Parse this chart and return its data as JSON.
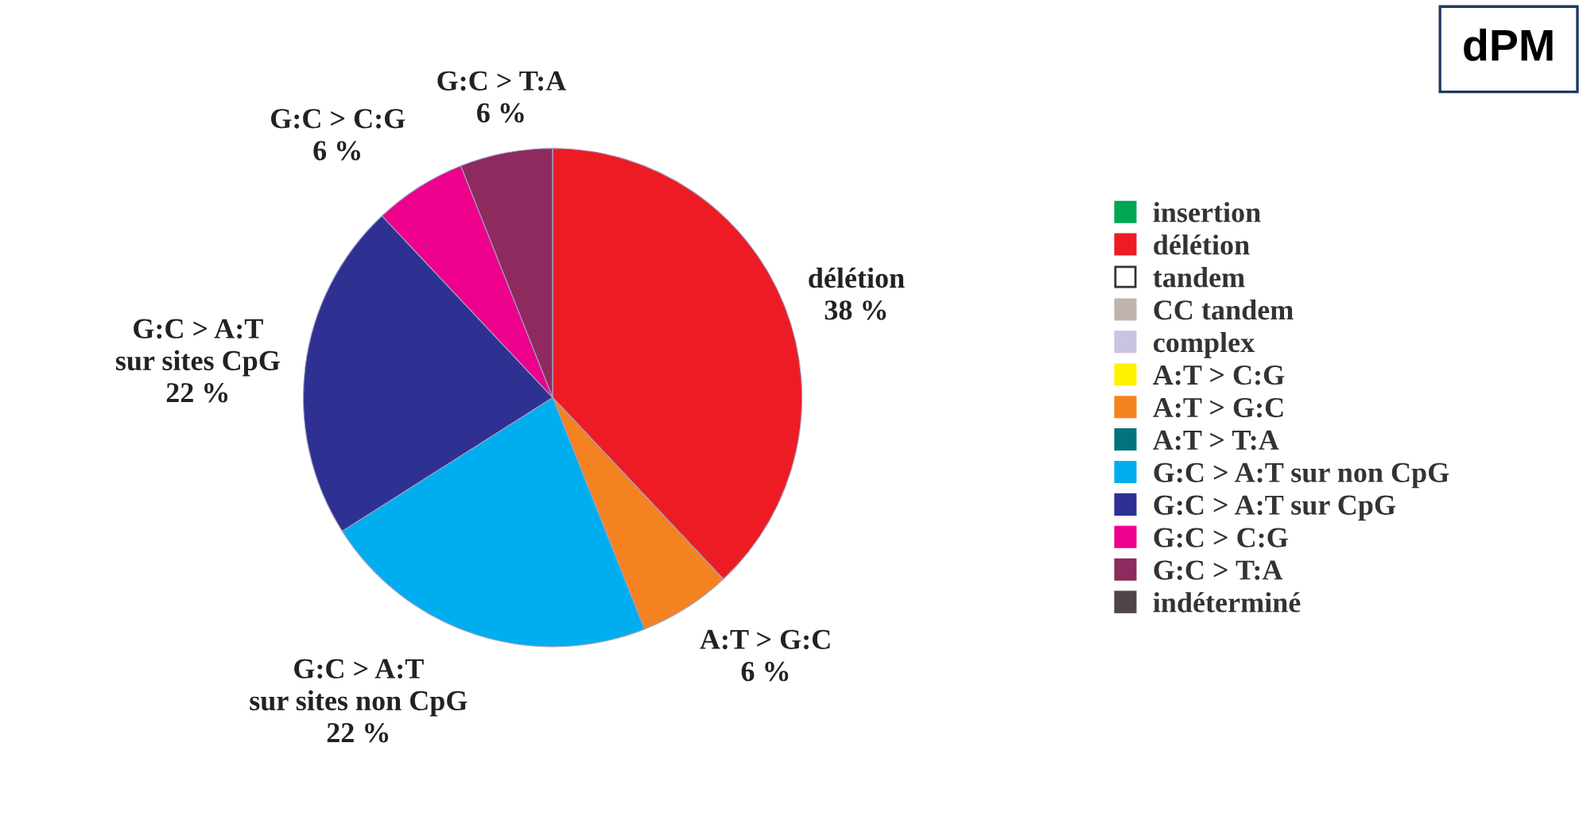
{
  "chart_data": {
    "type": "pie",
    "title": "dPM",
    "categories": [
      "insertion",
      "délétion",
      "tandem",
      "CC tandem",
      "complex",
      "A:T > C:G",
      "A:T > G:C",
      "A:T > T:A",
      "G:C > A:T sur non CpG",
      "G:C > A:T sur CpG",
      "G:C > C:G",
      "G:C > T:A",
      "indéterminé"
    ],
    "values": [
      0,
      38,
      0,
      0,
      0,
      0,
      6,
      0,
      22,
      22,
      6,
      6,
      0
    ],
    "colors": [
      "#00a651",
      "#ed1c24",
      "#ffffff",
      "#c0b4b0",
      "#c8c4e4",
      "#fff200",
      "#f58220",
      "#00747a",
      "#00aeef",
      "#2e3192",
      "#ec008c",
      "#8e2a5e",
      "#4d4546"
    ],
    "value_labels": [
      null,
      "délétion\n38 %",
      null,
      null,
      null,
      null,
      "A:T > G:C\n6 %",
      null,
      "G:C > A:T\nsur sites non CpG\n22 %",
      "G:C > A:T\nsur sites CpG\n22 %",
      "G:C > C:G\n6 %",
      "G:C > T:A\n6 %",
      null
    ],
    "legend": "right"
  }
}
